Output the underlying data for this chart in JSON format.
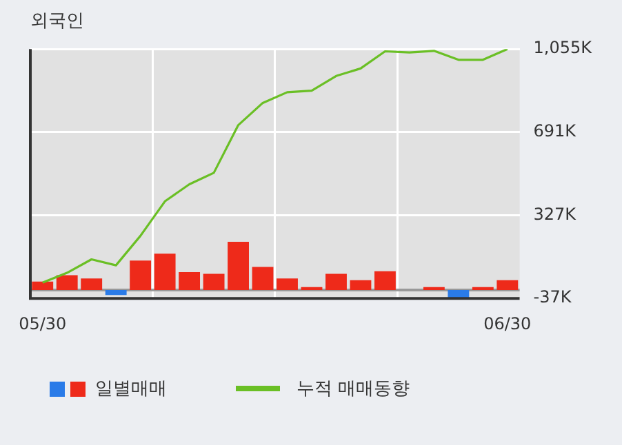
{
  "chart_data": {
    "type": "bar",
    "title": "외국인",
    "categories": [
      "05/30",
      null,
      null,
      null,
      null,
      null,
      null,
      null,
      null,
      null,
      null,
      null,
      null,
      null,
      null,
      null,
      null,
      null,
      null,
      "06/30"
    ],
    "series": [
      {
        "name": "일별매매",
        "values": [
          37,
          65,
          50,
          -22,
          129,
          159,
          78,
          71,
          211,
          101,
          50,
          13,
          71,
          43,
          82,
          0,
          13,
          -34,
          13,
          43
        ],
        "colors": [
          "#ee2a1a",
          "#ee2a1a",
          "#ee2a1a",
          "#2a7be8",
          "#ee2a1a",
          "#ee2a1a",
          "#ee2a1a",
          "#ee2a1a",
          "#ee2a1a",
          "#ee2a1a",
          "#ee2a1a",
          "#ee2a1a",
          "#ee2a1a",
          "#ee2a1a",
          "#ee2a1a",
          "#ee2a1a",
          "#ee2a1a",
          "#2a7be8",
          "#ee2a1a",
          "#ee2a1a"
        ]
      },
      {
        "type": "line",
        "name": "누적 매매동향",
        "color": "#6abf25",
        "values": [
          32,
          75,
          134,
          108,
          237,
          388,
          463,
          513,
          722,
          819,
          866,
          873,
          937,
          970,
          1045,
          1040,
          1047,
          1008,
          1008,
          1055
        ]
      }
    ],
    "ylim": [
      -37,
      1055
    ],
    "yticks": [
      {
        "value": -37,
        "label": "-37K"
      },
      {
        "value": 327,
        "label": "327K"
      },
      {
        "value": 691,
        "label": "691K"
      },
      {
        "value": 1055,
        "label": "1,055K"
      }
    ],
    "ref_lines": [
      {
        "axis": "y",
        "value": 0,
        "color": "#999999"
      }
    ],
    "grid": true,
    "legend": "bottom",
    "marker": "none"
  }
}
